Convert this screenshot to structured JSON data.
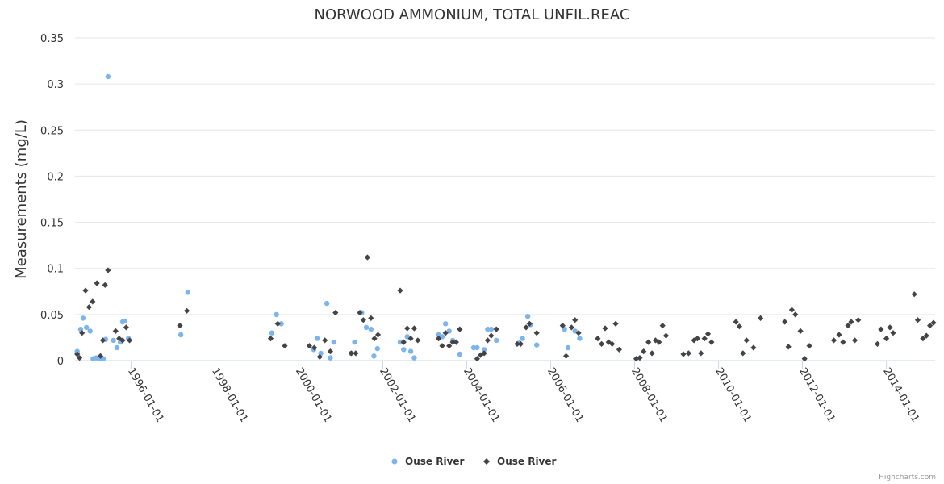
{
  "colors": {
    "series1": "#7cb5ec",
    "series2": "#434348",
    "grid": "#e6e6e6",
    "axis": "#ccd6eb"
  },
  "credits": "Highcharts.com",
  "chart_data": {
    "type": "scatter",
    "title": "NORWOOD AMMONIUM, TOTAL UNFIL.REAC",
    "ylabel": "Measurements (mg/L)",
    "xlabel": "",
    "ylim": [
      0,
      0.35
    ],
    "yticks": [
      "0",
      "0.05",
      "0.1",
      "0.15",
      "0.2",
      "0.25",
      "0.3",
      "0.35"
    ],
    "xlim": [
      "1994-09-01",
      "2015-03-01"
    ],
    "xticks": [
      "1996-01-01",
      "1998-01-01",
      "2000-01-01",
      "2002-01-01",
      "2004-01-01",
      "2006-01-01",
      "2008-01-01",
      "2010-01-01",
      "2012-01-01",
      "2014-01-01"
    ],
    "legend_position": "bottom-center",
    "series": [
      {
        "name": "Ouse River",
        "marker": "circle",
        "points": [
          [
            "1994-09-20",
            0.01
          ],
          [
            "1994-10-20",
            0.034
          ],
          [
            "1994-11-10",
            0.046
          ],
          [
            "1994-12-10",
            0.036
          ],
          [
            "1995-01-10",
            0.032
          ],
          [
            "1995-02-05",
            0.002
          ],
          [
            "1995-03-05",
            0.003
          ],
          [
            "1995-04-01",
            0.002
          ],
          [
            "1995-05-05",
            0.002
          ],
          [
            "1995-05-25",
            0.023
          ],
          [
            "1995-06-15",
            0.308
          ],
          [
            "1995-08-01",
            0.022
          ],
          [
            "1995-09-01",
            0.014
          ],
          [
            "1995-10-01",
            0.02
          ],
          [
            "1995-10-20",
            0.042
          ],
          [
            "1995-11-10",
            0.043
          ],
          [
            "1995-12-10",
            0.024
          ],
          [
            "1997-03-10",
            0.028
          ],
          [
            "1997-05-10",
            0.074
          ],
          [
            "1999-05-10",
            0.03
          ],
          [
            "1999-06-20",
            0.05
          ],
          [
            "1999-08-01",
            0.04
          ],
          [
            "2000-05-10",
            0.012
          ],
          [
            "2000-06-10",
            0.024
          ],
          [
            "2000-07-10",
            0.008
          ],
          [
            "2000-09-01",
            0.062
          ],
          [
            "2000-10-01",
            0.003
          ],
          [
            "2000-11-01",
            0.02
          ],
          [
            "2001-04-01",
            0.008
          ],
          [
            "2001-05-01",
            0.02
          ],
          [
            "2001-07-01",
            0.052
          ],
          [
            "2001-08-10",
            0.036
          ],
          [
            "2001-09-20",
            0.034
          ],
          [
            "2001-10-15",
            0.005
          ],
          [
            "2001-11-15",
            0.013
          ],
          [
            "2002-06-01",
            0.02
          ],
          [
            "2002-07-01",
            0.012
          ],
          [
            "2002-08-01",
            0.026
          ],
          [
            "2002-09-01",
            0.01
          ],
          [
            "2002-10-01",
            0.003
          ],
          [
            "2003-05-01",
            0.028
          ],
          [
            "2003-06-01",
            0.026
          ],
          [
            "2003-07-01",
            0.04
          ],
          [
            "2003-08-01",
            0.032
          ],
          [
            "2003-09-01",
            0.022
          ],
          [
            "2003-11-01",
            0.007
          ],
          [
            "2004-03-01",
            0.014
          ],
          [
            "2004-04-01",
            0.014
          ],
          [
            "2004-06-01",
            0.012
          ],
          [
            "2004-07-01",
            0.034
          ],
          [
            "2004-08-01",
            0.034
          ],
          [
            "2004-09-15",
            0.022
          ],
          [
            "2005-04-01",
            0.019
          ],
          [
            "2005-05-01",
            0.024
          ],
          [
            "2005-06-15",
            0.048
          ],
          [
            "2005-07-10",
            0.039
          ],
          [
            "2005-09-01",
            0.017
          ],
          [
            "2006-05-01",
            0.034
          ],
          [
            "2006-06-01",
            0.014
          ],
          [
            "2006-08-01",
            0.032
          ],
          [
            "2006-09-10",
            0.024
          ]
        ]
      },
      {
        "name": "Ouse River",
        "marker": "diamond",
        "points": [
          [
            "1994-09-20",
            0.007
          ],
          [
            "1994-10-10",
            0.003
          ],
          [
            "1994-11-01",
            0.03
          ],
          [
            "1994-12-01",
            0.076
          ],
          [
            "1995-01-01",
            0.058
          ],
          [
            "1995-02-01",
            0.064
          ],
          [
            "1995-03-10",
            0.084
          ],
          [
            "1995-04-10",
            0.005
          ],
          [
            "1995-05-01",
            0.022
          ],
          [
            "1995-05-20",
            0.082
          ],
          [
            "1995-06-15",
            0.098
          ],
          [
            "1995-08-20",
            0.032
          ],
          [
            "1995-09-20",
            0.024
          ],
          [
            "1995-10-20",
            0.022
          ],
          [
            "1995-11-20",
            0.036
          ],
          [
            "1995-12-20",
            0.022
          ],
          [
            "1997-03-01",
            0.038
          ],
          [
            "1997-05-01",
            0.054
          ],
          [
            "1999-05-01",
            0.024
          ],
          [
            "1999-07-01",
            0.04
          ],
          [
            "1999-09-01",
            0.016
          ],
          [
            "2000-04-01",
            0.016
          ],
          [
            "2000-05-15",
            0.014
          ],
          [
            "2000-07-01",
            0.004
          ],
          [
            "2000-08-15",
            0.022
          ],
          [
            "2000-10-01",
            0.01
          ],
          [
            "2000-11-15",
            0.052
          ],
          [
            "2001-04-01",
            0.008
          ],
          [
            "2001-05-10",
            0.008
          ],
          [
            "2001-06-15",
            0.052
          ],
          [
            "2001-07-15",
            0.044
          ],
          [
            "2001-08-20",
            0.112
          ],
          [
            "2001-09-20",
            0.046
          ],
          [
            "2001-10-20",
            0.024
          ],
          [
            "2001-11-20",
            0.028
          ],
          [
            "2002-06-01",
            0.076
          ],
          [
            "2002-07-01",
            0.02
          ],
          [
            "2002-08-01",
            0.035
          ],
          [
            "2002-09-01",
            0.024
          ],
          [
            "2002-10-01",
            0.035
          ],
          [
            "2002-11-01",
            0.022
          ],
          [
            "2003-05-01",
            0.024
          ],
          [
            "2003-06-01",
            0.016
          ],
          [
            "2003-07-01",
            0.03
          ],
          [
            "2003-08-01",
            0.016
          ],
          [
            "2003-09-01",
            0.02
          ],
          [
            "2003-10-01",
            0.02
          ],
          [
            "2003-11-01",
            0.034
          ],
          [
            "2004-04-01",
            0.002
          ],
          [
            "2004-05-01",
            0.006
          ],
          [
            "2004-06-01",
            0.008
          ],
          [
            "2004-07-01",
            0.022
          ],
          [
            "2004-08-01",
            0.027
          ],
          [
            "2004-09-15",
            0.034
          ],
          [
            "2005-03-15",
            0.018
          ],
          [
            "2005-04-15",
            0.018
          ],
          [
            "2005-06-01",
            0.036
          ],
          [
            "2005-07-01",
            0.04
          ],
          [
            "2005-09-01",
            0.03
          ],
          [
            "2006-04-15",
            0.038
          ],
          [
            "2006-05-15",
            0.005
          ],
          [
            "2006-07-01",
            0.036
          ],
          [
            "2006-08-01",
            0.044
          ],
          [
            "2006-09-01",
            0.03
          ],
          [
            "2007-02-15",
            0.024
          ],
          [
            "2007-03-20",
            0.018
          ],
          [
            "2007-04-20",
            0.035
          ],
          [
            "2007-05-20",
            0.02
          ],
          [
            "2007-06-20",
            0.018
          ],
          [
            "2007-07-20",
            0.04
          ],
          [
            "2007-08-20",
            0.012
          ],
          [
            "2008-01-15",
            0.002
          ],
          [
            "2008-02-15",
            0.003
          ],
          [
            "2008-03-20",
            0.01
          ],
          [
            "2008-05-01",
            0.02
          ],
          [
            "2008-06-01",
            0.008
          ],
          [
            "2008-07-01",
            0.022
          ],
          [
            "2008-08-01",
            0.02
          ],
          [
            "2008-09-01",
            0.038
          ],
          [
            "2008-10-01",
            0.027
          ],
          [
            "2009-03-01",
            0.007
          ],
          [
            "2009-04-15",
            0.008
          ],
          [
            "2009-06-01",
            0.022
          ],
          [
            "2009-07-01",
            0.024
          ],
          [
            "2009-08-01",
            0.008
          ],
          [
            "2009-09-01",
            0.024
          ],
          [
            "2009-10-01",
            0.029
          ],
          [
            "2009-11-01",
            0.02
          ],
          [
            "2010-06-01",
            0.042
          ],
          [
            "2010-07-01",
            0.037
          ],
          [
            "2010-08-01",
            0.008
          ],
          [
            "2010-09-01",
            0.022
          ],
          [
            "2010-11-01",
            0.014
          ],
          [
            "2011-01-01",
            0.046
          ],
          [
            "2011-08-01",
            0.042
          ],
          [
            "2011-09-01",
            0.015
          ],
          [
            "2011-10-01",
            0.055
          ],
          [
            "2011-11-01",
            0.05
          ],
          [
            "2011-12-15",
            0.032
          ],
          [
            "2012-01-20",
            0.002
          ],
          [
            "2012-03-01",
            0.016
          ],
          [
            "2012-10-01",
            0.022
          ],
          [
            "2012-11-15",
            0.028
          ],
          [
            "2012-12-20",
            0.02
          ],
          [
            "2013-02-01",
            0.038
          ],
          [
            "2013-03-01",
            0.042
          ],
          [
            "2013-04-01",
            0.022
          ],
          [
            "2013-05-01",
            0.044
          ],
          [
            "2013-10-15",
            0.018
          ],
          [
            "2013-11-15",
            0.034
          ],
          [
            "2014-01-01",
            0.024
          ],
          [
            "2014-02-01",
            0.036
          ],
          [
            "2014-03-01",
            0.03
          ],
          [
            "2014-09-01",
            0.072
          ],
          [
            "2014-10-01",
            0.044
          ],
          [
            "2014-11-15",
            0.024
          ],
          [
            "2014-12-15",
            0.027
          ],
          [
            "2015-01-15",
            0.038
          ],
          [
            "2015-02-15",
            0.041
          ]
        ]
      }
    ]
  }
}
